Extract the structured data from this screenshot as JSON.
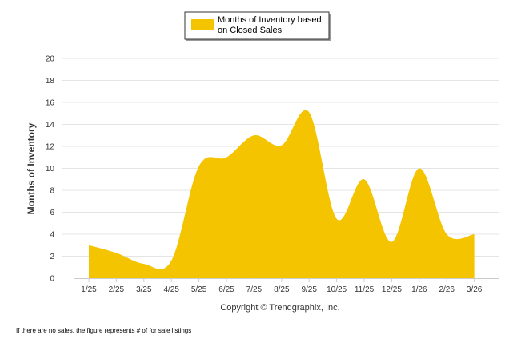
{
  "chart_data": {
    "type": "area",
    "legend": {
      "line1": "Months of Inventory based",
      "line2": "on Closed Sales",
      "placement": "top-center"
    },
    "series": [
      {
        "name": "Months of Inventory based on Closed Sales",
        "color": "#F5C400",
        "values": [
          3.0,
          2.3,
          1.3,
          1.6,
          10.2,
          11.0,
          13.0,
          12.1,
          15.1,
          5.4,
          9.0,
          3.3,
          10.0,
          4.0,
          4.0
        ]
      }
    ],
    "categories": [
      "1/25",
      "2/25",
      "3/25",
      "4/25",
      "5/25",
      "6/25",
      "7/25",
      "8/25",
      "9/25",
      "10/25",
      "11/25",
      "12/25",
      "1/26",
      "2/26",
      "3/26"
    ],
    "ylabel": "Months of Inventory",
    "xlabel": "Copyright © Trendgraphix, Inc.",
    "ylim": [
      0,
      20
    ],
    "yticks": [
      0,
      2,
      4,
      6,
      8,
      10,
      12,
      14,
      16,
      18,
      20
    ],
    "grid": true
  },
  "footnote": "If there are no sales, the figure represents # of for sale listings"
}
